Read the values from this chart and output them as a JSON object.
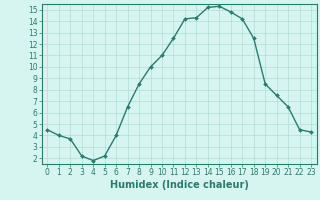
{
  "xlabel": "Humidex (Indice chaleur)",
  "ylabel": "",
  "x": [
    0,
    1,
    2,
    3,
    4,
    5,
    6,
    7,
    8,
    9,
    10,
    11,
    12,
    13,
    14,
    15,
    16,
    17,
    18,
    19,
    20,
    21,
    22,
    23
  ],
  "y": [
    4.5,
    4.0,
    3.7,
    2.2,
    1.8,
    2.2,
    4.0,
    6.5,
    8.5,
    10.0,
    11.0,
    12.5,
    14.2,
    14.3,
    15.2,
    15.3,
    14.8,
    14.2,
    12.5,
    8.5,
    7.5,
    6.5,
    4.5,
    4.3
  ],
  "line_color": "#2d7a6e",
  "marker_color": "#2d7a6e",
  "bg_color": "#d6f5f0",
  "grid_color": "#b0ddd8",
  "axis_color": "#2d7a6e",
  "tick_color": "#2d7a6e",
  "label_color": "#2d7a6e",
  "xlim": [
    -0.5,
    23.5
  ],
  "ylim": [
    1.5,
    15.5
  ],
  "yticks": [
    2,
    3,
    4,
    5,
    6,
    7,
    8,
    9,
    10,
    11,
    12,
    13,
    14,
    15
  ],
  "xticks": [
    0,
    1,
    2,
    3,
    4,
    5,
    6,
    7,
    8,
    9,
    10,
    11,
    12,
    13,
    14,
    15,
    16,
    17,
    18,
    19,
    20,
    21,
    22,
    23
  ],
  "marker_size": 2.0,
  "line_width": 1.0,
  "xlabel_fontsize": 7,
  "tick_fontsize": 5.5
}
